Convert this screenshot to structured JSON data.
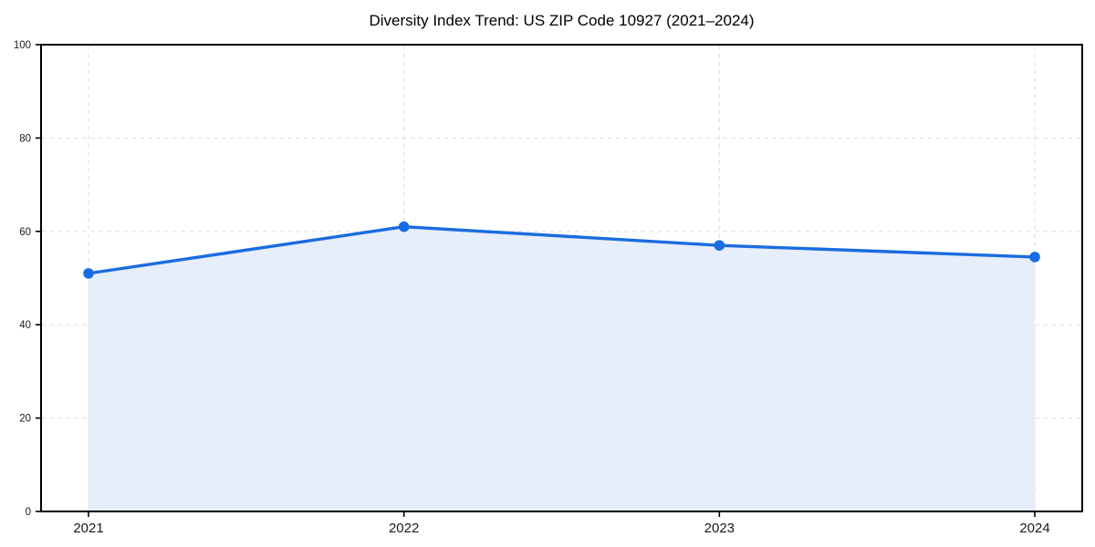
{
  "page": {
    "background_color": "#ffffff"
  },
  "chart_data": {
    "type": "area",
    "title": "Diversity Index Trend: US ZIP Code 10927 (2021–2024)",
    "categories": [
      "2021",
      "2022",
      "2023",
      "2024"
    ],
    "series": [
      {
        "name": "Diversity Index",
        "values": [
          51,
          61,
          57,
          54.5
        ]
      }
    ],
    "xlabel": "",
    "ylabel": "",
    "ylim": [
      0,
      100
    ],
    "yticks": [
      0,
      20,
      40,
      60,
      80,
      100
    ],
    "grid": true,
    "grid_style": "dashed",
    "legend_position": "none",
    "colors": {
      "line": "#1a6ce0",
      "marker": "#1a6ce0",
      "area_fill": "#e6edfb",
      "gridline": "#e0e0e0",
      "spine": "#000000",
      "tick_label": "#1a1a1a",
      "title": "#000000"
    }
  }
}
